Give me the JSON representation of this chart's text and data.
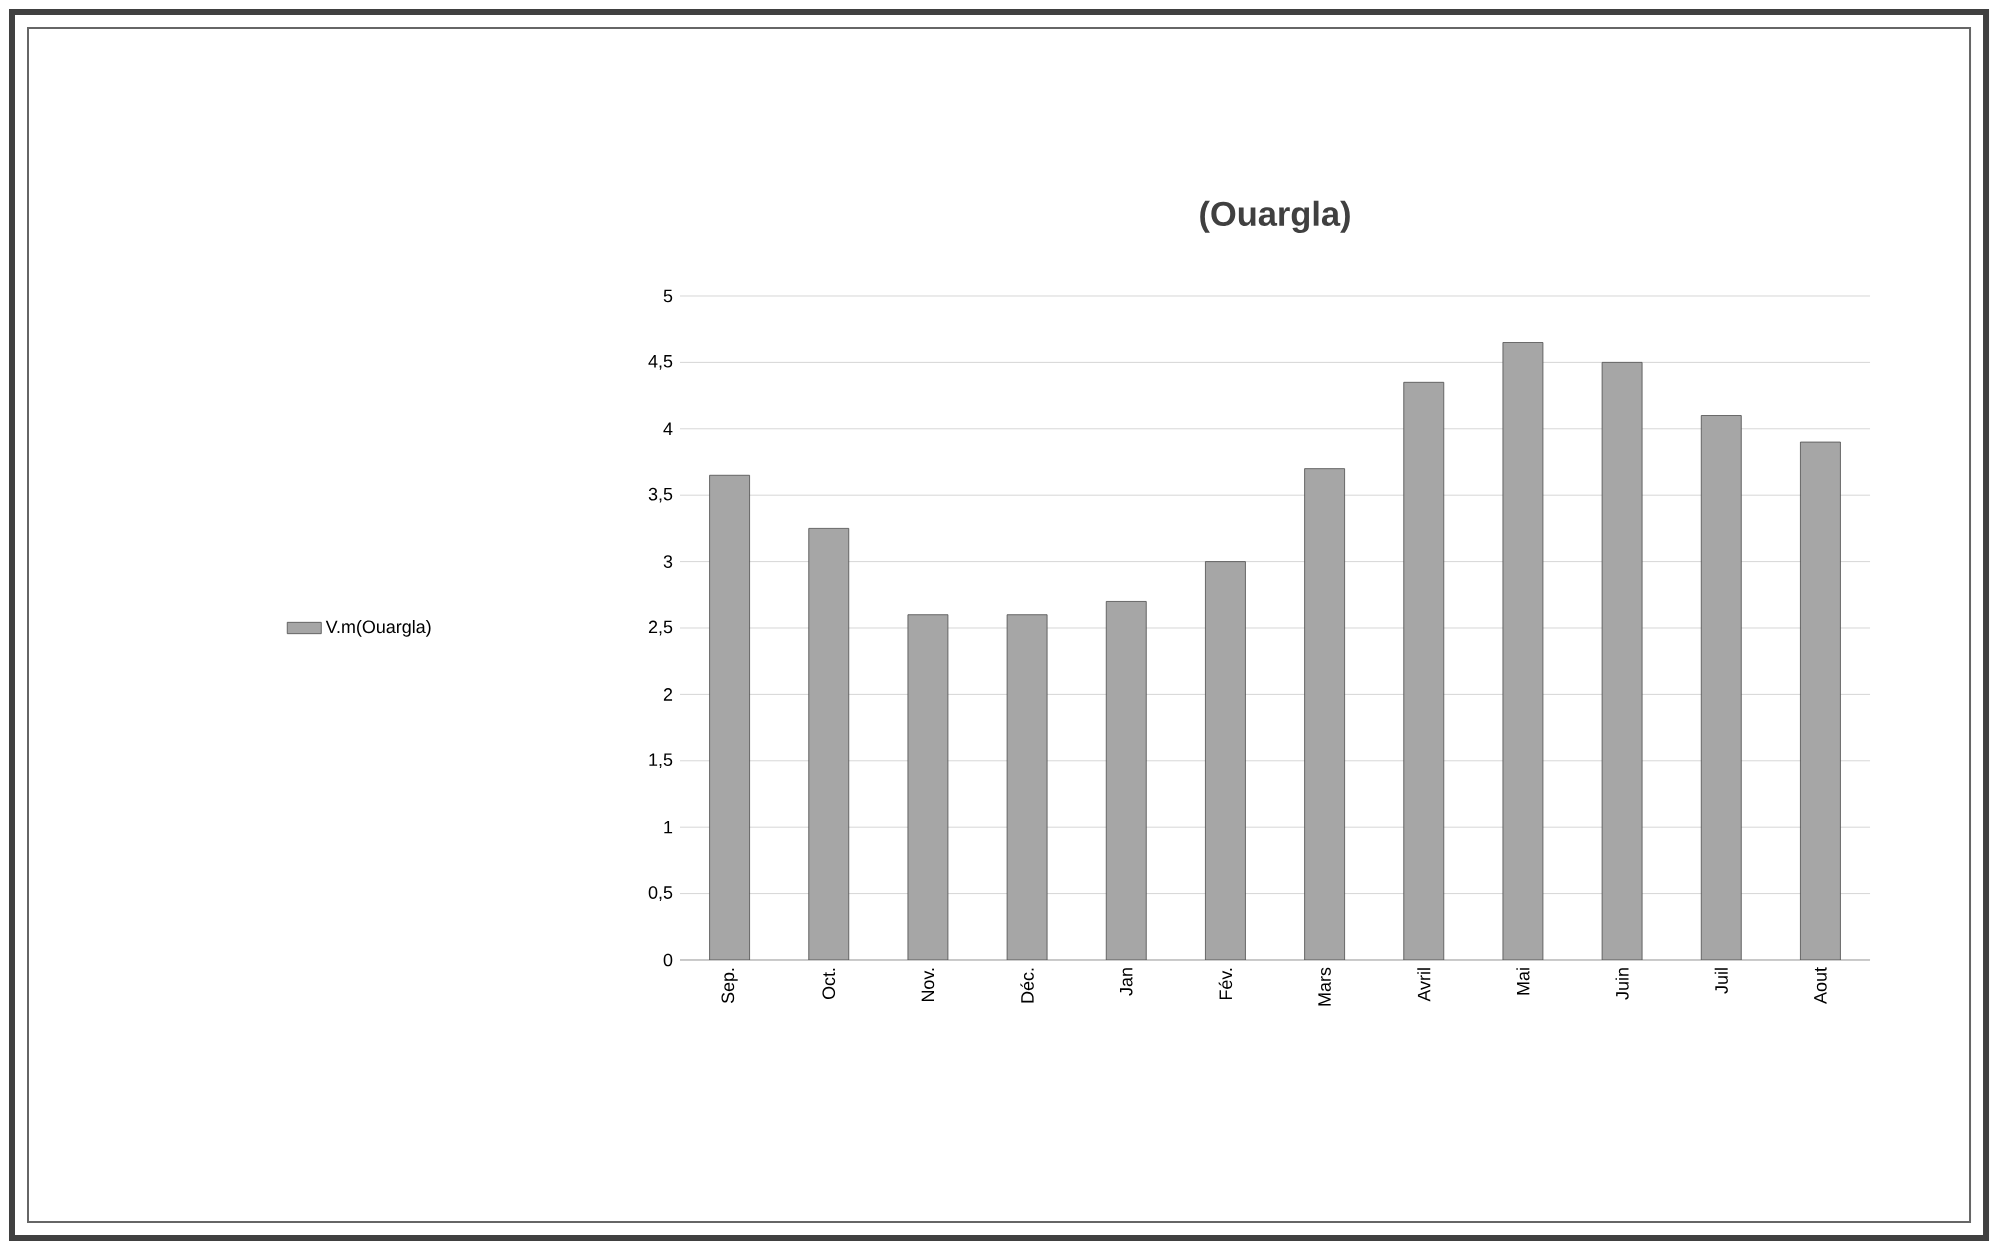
{
  "chart_data": {
    "type": "bar",
    "title": "(Ouargla)",
    "categories": [
      "Sep.",
      "Oct.",
      "Nov.",
      "Déc.",
      "Jan",
      "Fév.",
      "Mars",
      "Avril",
      "Mai",
      "Juin",
      "Juil",
      "Aout"
    ],
    "series": [
      {
        "name": "V.m(Ouargla)",
        "color": "#a6a6a6",
        "values": [
          3.65,
          3.25,
          2.6,
          2.6,
          2.7,
          3,
          3.7,
          4.35,
          4.65,
          4.5,
          4.1,
          3.9
        ]
      }
    ],
    "ylim": [
      0,
      5
    ],
    "yticks": [
      0,
      {
        "value": 0.5,
        "label": "0,5"
      },
      1,
      {
        "value": 1.5,
        "label": "1,5"
      },
      2,
      {
        "value": 2.5,
        "label": "2,5"
      },
      3,
      {
        "value": 3.5,
        "label": "3,5"
      },
      4,
      {
        "value": 4.5,
        "label": "4,5"
      },
      5
    ],
    "grid": "y",
    "legend": "left"
  }
}
